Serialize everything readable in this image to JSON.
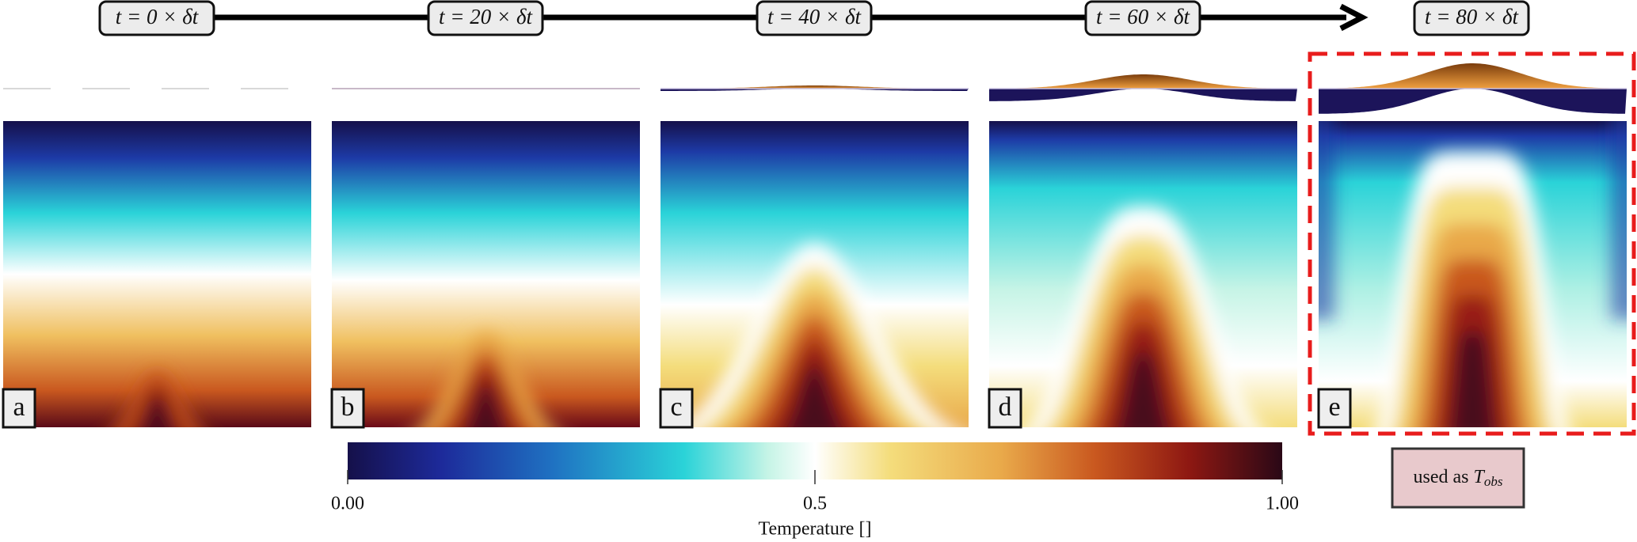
{
  "timeline": {
    "labels": [
      "t = 0 × δt",
      "t = 20 × δt",
      "t = 40 × δt",
      "t = 60 × δt",
      "t = 80 × δt"
    ]
  },
  "panels": [
    {
      "letter": "a"
    },
    {
      "letter": "b"
    },
    {
      "letter": "c"
    },
    {
      "letter": "d"
    },
    {
      "letter": "e"
    }
  ],
  "colorbar": {
    "label": "Temperature []",
    "range": [
      0,
      1
    ],
    "ticks": [
      {
        "value": 0,
        "label": "0.00"
      },
      0.5,
      {
        "value": 1,
        "label": "1.00"
      }
    ]
  },
  "annotation": {
    "prefix": "used as",
    "symbol": "T",
    "subscript": "obs"
  }
}
